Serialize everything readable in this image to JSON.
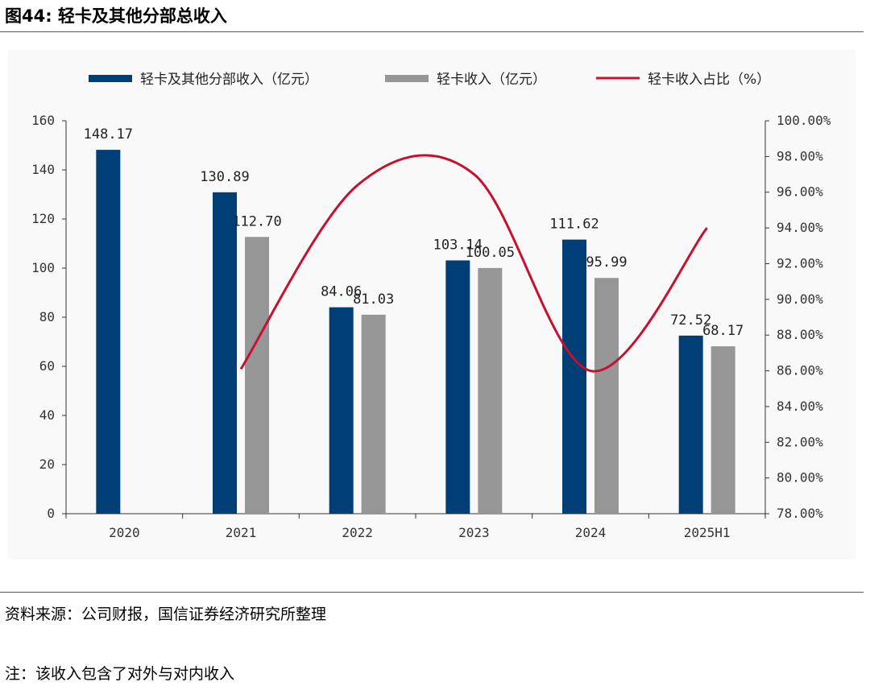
{
  "figure_title": "图44: 轻卡及其他分部总收入",
  "source_note": "资料来源：公司财报，国信证券经济研究所整理",
  "footnote": "注：该收入包含了对外与对内收入",
  "colors": {
    "navy": "#003f75",
    "grey": "#969696",
    "red": "#c8102e"
  },
  "chart_data": {
    "type": "bar",
    "categories": [
      "2020",
      "2021",
      "2022",
      "2023",
      "2024",
      "2025H1"
    ],
    "series": [
      {
        "name": "轻卡及其他分部收入（亿元）",
        "kind": "bar",
        "axis": "left",
        "color": "#003f75",
        "values": [
          148.17,
          130.89,
          84.06,
          103.14,
          111.62,
          72.52
        ],
        "labels": [
          "148.17",
          "130.89",
          "84.06",
          "103.14",
          "111.62",
          "72.52"
        ]
      },
      {
        "name": "轻卡收入（亿元）",
        "kind": "bar",
        "axis": "left",
        "color": "#969696",
        "values": [
          null,
          112.7,
          81.03,
          100.05,
          95.99,
          68.17
        ],
        "labels": [
          "",
          "112.70",
          "81.03",
          "100.05",
          "95.99",
          "68.17"
        ]
      },
      {
        "name": "轻卡收入占比（%）",
        "kind": "line",
        "axis": "right",
        "color": "#c8102e",
        "values": [
          null,
          86.1,
          96.39,
          97.01,
          86.0,
          94.0
        ]
      }
    ],
    "y_left": {
      "min": 0,
      "max": 160,
      "ticks": [
        "0",
        "20",
        "40",
        "60",
        "80",
        "100",
        "120",
        "140",
        "160"
      ]
    },
    "y_right": {
      "min": 78,
      "max": 100,
      "ticks": [
        "78.00%",
        "80.00%",
        "82.00%",
        "84.00%",
        "86.00%",
        "88.00%",
        "90.00%",
        "92.00%",
        "94.00%",
        "96.00%",
        "98.00%",
        "100.00%"
      ]
    },
    "legend_position": "top"
  }
}
